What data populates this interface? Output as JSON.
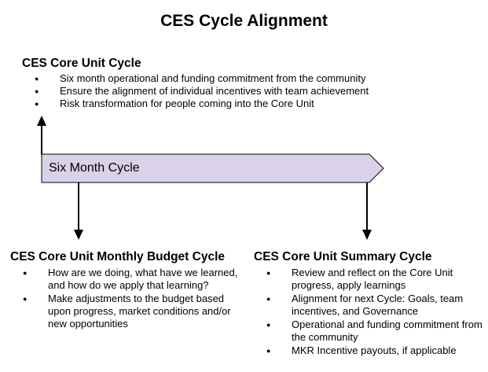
{
  "title": "CES Cycle Alignment",
  "cycle_bar": {
    "label": "Six Month Cycle",
    "fill": "#d9d2e9"
  },
  "core_unit_cycle": {
    "heading": "CES Core Unit Cycle",
    "bullets": [
      "Six month operational and funding commitment from the community",
      "Ensure the alignment of individual incentives with team achievement",
      "Risk transformation for people coming into the Core Unit"
    ]
  },
  "monthly_budget_cycle": {
    "heading": "CES Core Unit Monthly Budget Cycle",
    "bullets": [
      "How are we doing, what have we learned, and how do we apply that learning?",
      "Make adjustments to the budget based upon progress, market conditions and/or new opportunities"
    ]
  },
  "summary_cycle": {
    "heading": "CES Core Unit Summary Cycle",
    "bullets": [
      "Review and reflect on the Core Unit progress, apply learnings",
      "Alignment for next Cycle: Goals, team incentives, and Governance",
      "Operational and funding commitment from the community",
      "MKR Incentive payouts, if applicable"
    ]
  }
}
